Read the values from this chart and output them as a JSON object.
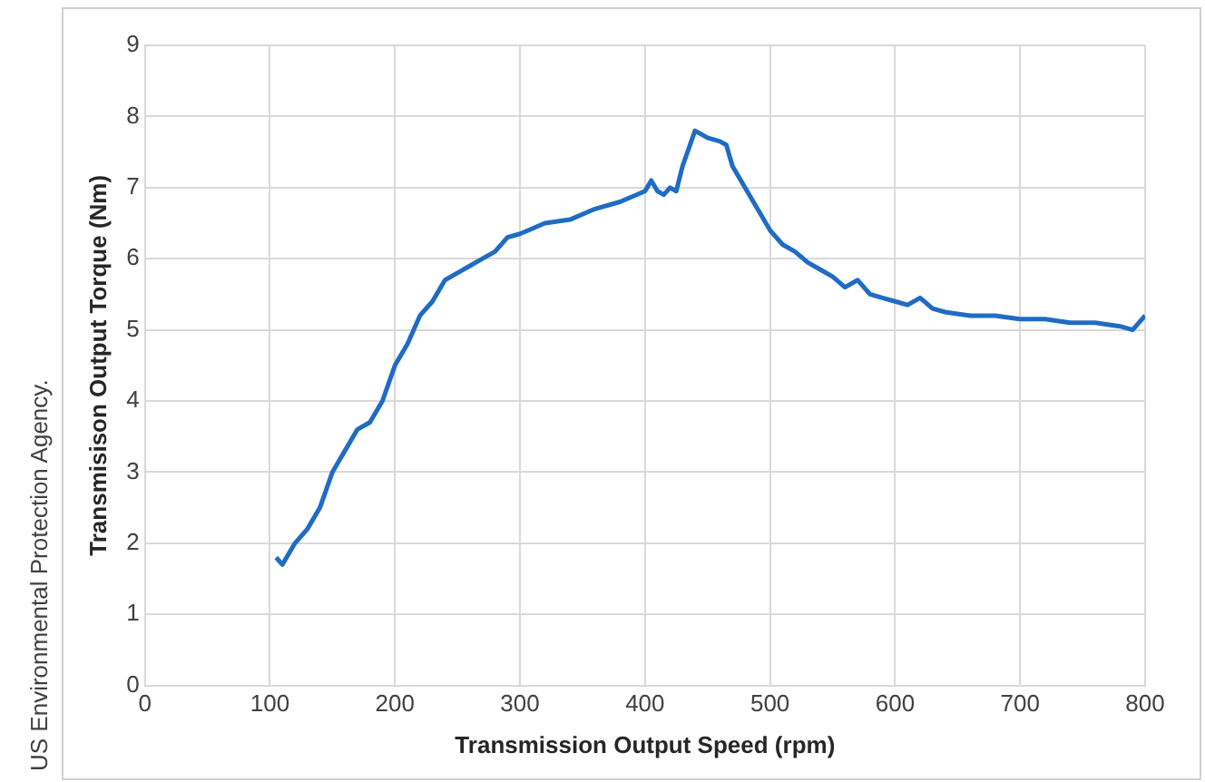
{
  "chart_data": {
    "type": "line",
    "xlabel": "Transmission Output Speed (rpm)",
    "ylabel": "Transmisison Output Torque (Nm)",
    "annotations": [
      "US Environmental Protection Agency."
    ],
    "x": [
      105,
      110,
      120,
      130,
      140,
      150,
      160,
      170,
      180,
      190,
      200,
      210,
      220,
      230,
      240,
      250,
      260,
      270,
      280,
      290,
      300,
      320,
      340,
      360,
      380,
      400,
      405,
      410,
      415,
      420,
      425,
      430,
      440,
      450,
      460,
      465,
      470,
      480,
      490,
      500,
      510,
      520,
      530,
      540,
      550,
      560,
      570,
      580,
      590,
      600,
      610,
      620,
      630,
      640,
      660,
      680,
      700,
      720,
      740,
      760,
      780,
      790,
      800
    ],
    "series": [
      {
        "color": "#1f6cc4",
        "values": [
          1.8,
          1.7,
          2.0,
          2.2,
          2.5,
          3.0,
          3.3,
          3.6,
          3.7,
          4.0,
          4.5,
          4.8,
          5.2,
          5.4,
          5.7,
          5.8,
          5.9,
          6.0,
          6.1,
          6.3,
          6.35,
          6.5,
          6.55,
          6.7,
          6.8,
          6.95,
          7.1,
          6.95,
          6.9,
          7.0,
          6.95,
          7.3,
          7.8,
          7.7,
          7.65,
          7.6,
          7.3,
          7.0,
          6.7,
          6.4,
          6.2,
          6.1,
          5.95,
          5.85,
          5.75,
          5.6,
          5.7,
          5.5,
          5.45,
          5.4,
          5.35,
          5.45,
          5.3,
          5.25,
          5.2,
          5.2,
          5.15,
          5.15,
          5.1,
          5.1,
          5.05,
          5.0,
          5.2
        ]
      }
    ],
    "xlim": [
      0,
      800
    ],
    "xticks": [
      0,
      100,
      200,
      300,
      400,
      500,
      600,
      700,
      800
    ],
    "ylim": [
      0,
      9
    ],
    "yticks": [
      0,
      1,
      2,
      3,
      4,
      5,
      6,
      7,
      8,
      9
    ],
    "grid": true,
    "legend": false,
    "marker": "none",
    "line_style": "solid"
  }
}
